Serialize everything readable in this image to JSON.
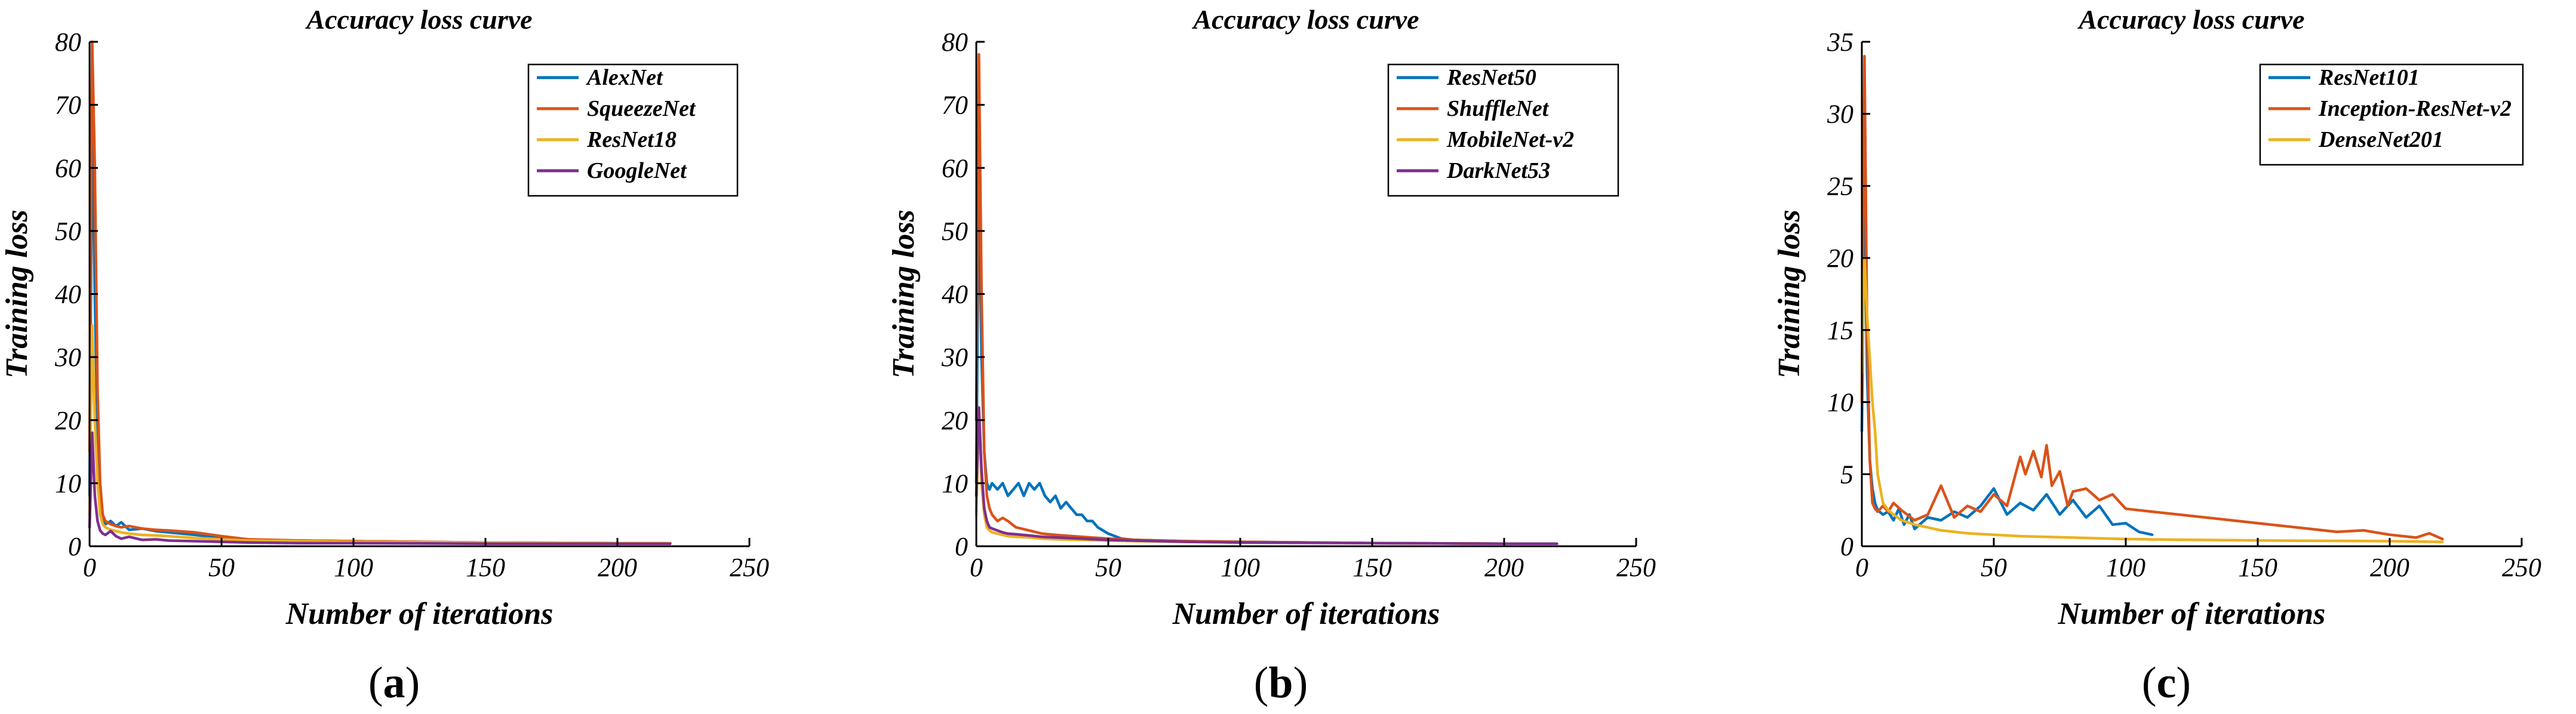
{
  "chart_data": [
    {
      "type": "line",
      "title": "Accuracy loss curve",
      "xlabel": "Number of iterations",
      "ylabel": "Training loss",
      "xlim": [
        0,
        250
      ],
      "ylim": [
        0,
        80
      ],
      "xticks": [
        "0",
        "50",
        "100",
        "150",
        "200",
        "250"
      ],
      "yticks": [
        "0",
        "10",
        "20",
        "30",
        "40",
        "50",
        "60",
        "70",
        "80"
      ],
      "caption": "a",
      "legend_position": "top-right",
      "series": [
        {
          "name": "AlexNet",
          "color": "#0072BD",
          "x": [
            0,
            1,
            2,
            3,
            4,
            5,
            6,
            8,
            10,
            12,
            15,
            20,
            25,
            30,
            40,
            50,
            60,
            80,
            100,
            150,
            200,
            220
          ],
          "y": [
            8,
            70,
            40,
            18,
            8,
            4,
            3.5,
            4,
            3.2,
            3.8,
            2.6,
            2.8,
            2.4,
            2.2,
            1.8,
            1.3,
            1.0,
            0.9,
            0.8,
            0.6,
            0.5,
            0.5
          ]
        },
        {
          "name": "SqueezeNet",
          "color": "#D95319",
          "x": [
            0,
            1,
            2,
            3,
            4,
            5,
            6,
            8,
            10,
            12,
            15,
            20,
            25,
            30,
            40,
            50,
            60,
            80,
            100,
            150,
            200,
            220
          ],
          "y": [
            15,
            80,
            60,
            25,
            10,
            5,
            4,
            3.5,
            3.2,
            3,
            3.2,
            2.8,
            2.6,
            2.5,
            2.2,
            1.6,
            1.1,
            0.9,
            0.8,
            0.6,
            0.5,
            0.5
          ]
        },
        {
          "name": "ResNet18",
          "color": "#EDB120",
          "x": [
            0,
            1,
            2,
            3,
            4,
            5,
            6,
            8,
            10,
            12,
            15,
            20,
            25,
            30,
            40,
            50,
            60,
            80,
            100,
            150,
            200,
            220
          ],
          "y": [
            5,
            35,
            20,
            10,
            5,
            3.5,
            3,
            2.6,
            2.4,
            2.2,
            2.0,
            1.8,
            1.7,
            1.6,
            1.3,
            1.1,
            0.9,
            0.8,
            0.7,
            0.6,
            0.5,
            0.5
          ]
        },
        {
          "name": "GoogleNet",
          "color": "#7E2F8E",
          "x": [
            0,
            1,
            2,
            3,
            4,
            5,
            6,
            8,
            10,
            12,
            15,
            20,
            25,
            30,
            40,
            50,
            60,
            80,
            100,
            150,
            200,
            220
          ],
          "y": [
            3,
            18,
            8,
            4,
            2.5,
            2,
            1.8,
            2.4,
            1.6,
            1.2,
            1.5,
            1.0,
            1.1,
            0.9,
            0.8,
            0.7,
            0.6,
            0.5,
            0.5,
            0.4,
            0.4,
            0.4
          ]
        }
      ]
    },
    {
      "type": "line",
      "title": "Accuracy loss curve",
      "xlabel": "Number of iterations",
      "ylabel": "Training loss",
      "xlim": [
        0,
        250
      ],
      "ylim": [
        0,
        80
      ],
      "xticks": [
        "0",
        "50",
        "100",
        "150",
        "200",
        "250"
      ],
      "yticks": [
        "0",
        "10",
        "20",
        "30",
        "40",
        "50",
        "60",
        "70",
        "80"
      ],
      "caption": "b",
      "legend_position": "top-right",
      "series": [
        {
          "name": "ResNet50",
          "color": "#0072BD",
          "x": [
            0,
            1,
            2,
            3,
            4,
            5,
            6,
            8,
            10,
            12,
            14,
            16,
            18,
            20,
            22,
            24,
            26,
            28,
            30,
            32,
            34,
            36,
            38,
            40,
            42,
            44,
            46,
            48,
            50,
            55,
            60,
            70,
            80,
            100,
            150,
            200,
            220
          ],
          "y": [
            10,
            60,
            30,
            15,
            10,
            9,
            10,
            9,
            10,
            8,
            9,
            10,
            8,
            10,
            9,
            10,
            8,
            7,
            8,
            6,
            7,
            6,
            5,
            5,
            4,
            4,
            3,
            2.5,
            2,
            1.2,
            1.0,
            0.9,
            0.8,
            0.7,
            0.5,
            0.4,
            0.4
          ]
        },
        {
          "name": "ShuffleNet",
          "color": "#D95319",
          "x": [
            0,
            1,
            2,
            3,
            4,
            5,
            6,
            8,
            10,
            12,
            15,
            20,
            25,
            30,
            40,
            50,
            60,
            80,
            100,
            150,
            200,
            220
          ],
          "y": [
            20,
            78,
            40,
            15,
            8,
            6,
            5,
            4,
            4.5,
            4,
            3,
            2.5,
            2,
            1.8,
            1.5,
            1.2,
            1.0,
            0.8,
            0.7,
            0.5,
            0.4,
            0.4
          ]
        },
        {
          "name": "MobileNet-v2",
          "color": "#EDB120",
          "x": [
            0,
            1,
            2,
            3,
            4,
            5,
            6,
            8,
            10,
            12,
            15,
            20,
            25,
            30,
            40,
            50,
            60,
            80,
            100,
            150,
            200,
            220
          ],
          "y": [
            5,
            22,
            10,
            5,
            3,
            2.5,
            2.2,
            2.0,
            1.8,
            1.6,
            1.5,
            1.4,
            1.2,
            1.1,
            1.0,
            0.9,
            0.8,
            0.7,
            0.6,
            0.5,
            0.4,
            0.4
          ]
        },
        {
          "name": "DarkNet53",
          "color": "#7E2F8E",
          "x": [
            0,
            1,
            2,
            3,
            4,
            5,
            6,
            8,
            10,
            12,
            15,
            20,
            25,
            30,
            40,
            50,
            60,
            80,
            100,
            150,
            200,
            220
          ],
          "y": [
            8,
            22,
            12,
            6,
            4,
            3,
            2.8,
            2.5,
            2.2,
            2.0,
            1.9,
            1.7,
            1.5,
            1.4,
            1.2,
            1.0,
            0.9,
            0.7,
            0.6,
            0.5,
            0.4,
            0.4
          ]
        }
      ]
    },
    {
      "type": "line",
      "title": "Accuracy loss curve",
      "xlabel": "Number of iterations",
      "ylabel": "Training loss",
      "xlim": [
        0,
        250
      ],
      "ylim": [
        0,
        35
      ],
      "xticks": [
        "0",
        "50",
        "100",
        "150",
        "200",
        "250"
      ],
      "yticks": [
        "0",
        "5",
        "10",
        "15",
        "20",
        "25",
        "30",
        "35"
      ],
      "caption": "c",
      "legend_position": "top-right",
      "series": [
        {
          "name": "ResNet101",
          "color": "#0072BD",
          "x": [
            0,
            1,
            2,
            3,
            4,
            5,
            6,
            8,
            10,
            12,
            14,
            16,
            18,
            20,
            25,
            30,
            35,
            40,
            45,
            50,
            55,
            60,
            65,
            70,
            75,
            80,
            85,
            90,
            95,
            100,
            105,
            110
          ],
          "y": [
            8,
            25,
            12,
            6,
            4,
            3,
            2.5,
            2.2,
            2.4,
            1.8,
            2.6,
            1.5,
            2.2,
            1.2,
            2.0,
            1.8,
            2.4,
            2.0,
            2.8,
            4.0,
            2.2,
            3.0,
            2.5,
            3.6,
            2.2,
            3.2,
            2.0,
            2.8,
            1.5,
            1.6,
            1.0,
            0.8
          ]
        },
        {
          "name": "Inception-ResNet-v2",
          "color": "#D95319",
          "x": [
            0,
            1,
            2,
            3,
            4,
            5,
            6,
            8,
            10,
            12,
            15,
            20,
            25,
            30,
            35,
            40,
            45,
            50,
            55,
            60,
            62,
            65,
            68,
            70,
            72,
            75,
            78,
            80,
            85,
            90,
            95,
            100,
            110,
            120,
            130,
            140,
            150,
            160,
            170,
            180,
            190,
            200,
            210,
            215,
            220
          ],
          "y": [
            10,
            34,
            15,
            6,
            3,
            2.6,
            2.4,
            2.8,
            2.4,
            3.0,
            2.5,
            1.8,
            2.2,
            4.2,
            2.0,
            2.8,
            2.4,
            3.6,
            2.8,
            6.2,
            5.0,
            6.6,
            4.8,
            7.0,
            4.2,
            5.2,
            2.8,
            3.8,
            4.0,
            3.2,
            3.6,
            2.6,
            2.4,
            2.2,
            2.0,
            1.8,
            1.6,
            1.4,
            1.2,
            1.0,
            1.1,
            0.8,
            0.6,
            0.9,
            0.5
          ]
        },
        {
          "name": "DenseNet201",
          "color": "#EDB120",
          "x": [
            0,
            1,
            2,
            3,
            4,
            5,
            6,
            8,
            10,
            12,
            15,
            20,
            25,
            30,
            40,
            50,
            60,
            80,
            100,
            120,
            150,
            200,
            220
          ],
          "y": [
            12,
            20,
            16,
            13,
            10,
            8,
            5,
            3,
            2.5,
            2.2,
            1.8,
            1.5,
            1.3,
            1.1,
            0.9,
            0.8,
            0.7,
            0.6,
            0.5,
            0.45,
            0.4,
            0.35,
            0.3
          ]
        }
      ]
    }
  ]
}
